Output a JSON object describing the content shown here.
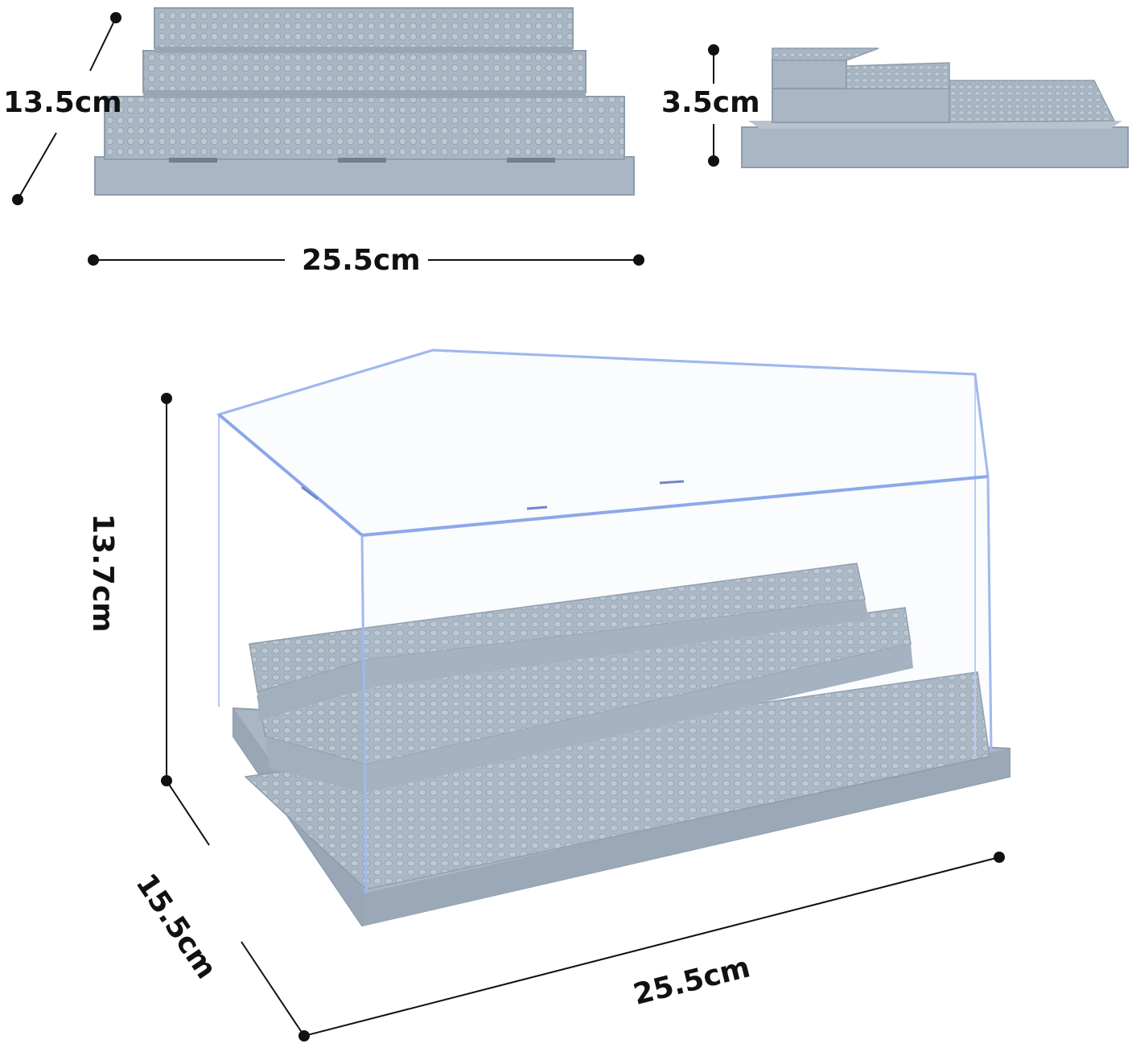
{
  "dimensions": {
    "top_plate_depth": "13.5cm",
    "top_plate_height": "3.5cm",
    "top_plate_width": "25.5cm",
    "case_height": "13.7cm",
    "case_depth": "15.5cm",
    "case_width": "25.5cm"
  },
  "colors": {
    "plate": "#a9b6c3",
    "plate_dark": "#8e9cab",
    "plate_light": "#c2ccd6",
    "stud": "#b8c3ce",
    "acrylic_edge": "#9fb8ee",
    "background": "#ffffff",
    "marker": "#111111"
  }
}
